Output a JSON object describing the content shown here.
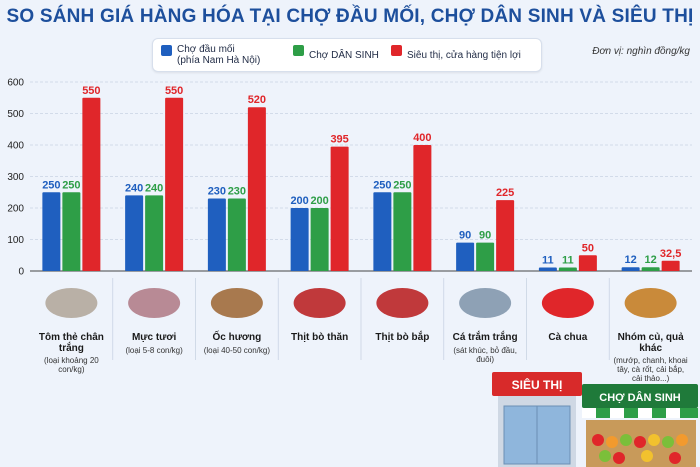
{
  "title": "SO SÁNH GIÁ HÀNG HÓA TẠI CHỢ ĐẦU MỐI, CHỢ DÂN SINH VÀ SIÊU THỊ",
  "unit": "Đơn vị: nghìn đồng/kg",
  "colors": {
    "dau_moi": "#1f5fbf",
    "dan_sinh": "#2e9e47",
    "sieu_thi": "#e0262a"
  },
  "store_signs": {
    "sieu_thi": "SIÊU THỊ",
    "cho_dan_sinh": "CHỢ DÂN SINH"
  },
  "chart_data": {
    "type": "bar",
    "title": "SO SÁNH GIÁ HÀNG HÓA TẠI CHỢ ĐẦU MỐI, CHỢ DÂN SINH VÀ SIÊU THỊ",
    "ylabel": "Đơn vị: nghìn đồng/kg",
    "ylim": [
      0,
      600
    ],
    "yticks": [
      0,
      100,
      200,
      300,
      400,
      500,
      600
    ],
    "grid": true,
    "legend_position": "top",
    "categories": [
      "Tôm thẻ chân trắng",
      "Mực tươi",
      "Ốc hương",
      "Thịt bò thăn",
      "Thịt bò bắp",
      "Cá trắm trắng",
      "Cà chua",
      "Nhóm củ, quả khác"
    ],
    "category_notes": [
      "(loại khoảng 20 con/kg)",
      "(loại 5-8 con/kg)",
      "(loại 40-50 con/kg)",
      "",
      "",
      "(sát khúc, bỏ đầu, đuôi)",
      "",
      "(mướp, chanh, khoai tây, cà rốt, cải bắp, cải thảo...)"
    ],
    "series": [
      {
        "name": "Chợ đầu mối",
        "name_sub": "(phía Nam Hà Nội)",
        "values": [
          250,
          240,
          230,
          200,
          250,
          90,
          11,
          12
        ],
        "labels": [
          "250",
          "240",
          "230",
          "200",
          "250",
          "90",
          "11",
          "12"
        ]
      },
      {
        "name": "Chợ DÂN SINH",
        "values": [
          250,
          240,
          230,
          200,
          250,
          90,
          11,
          12
        ],
        "labels": [
          "250",
          "240",
          "230",
          "200",
          "250",
          "90",
          "11",
          "12"
        ]
      },
      {
        "name": "Siêu thị, cửa hàng tiện lợi",
        "values": [
          550,
          550,
          520,
          395,
          400,
          225,
          50,
          32.5
        ],
        "labels": [
          "550",
          "550",
          "520",
          "395",
          "400",
          "225",
          "50",
          "32,5"
        ]
      }
    ]
  }
}
